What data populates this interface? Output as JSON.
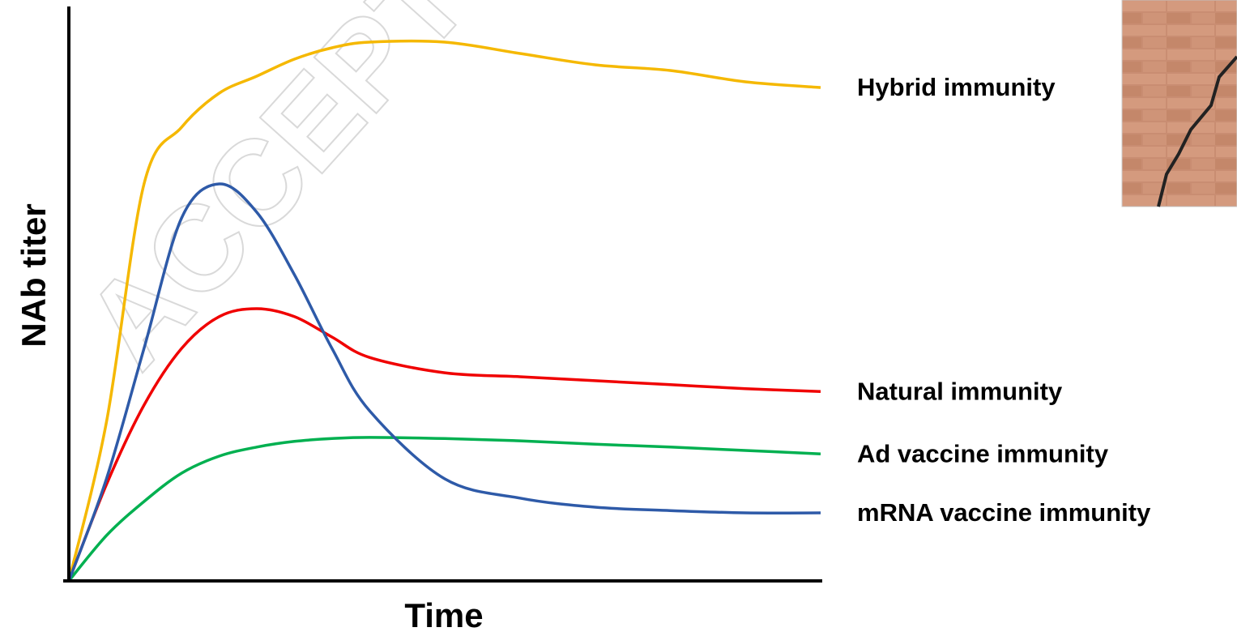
{
  "chart_data": {
    "type": "line",
    "y_label": "NAb titer",
    "x_label": "Time",
    "watermark": "ACCEPTED",
    "xlim": [
      0,
      100
    ],
    "ylim": [
      0,
      100
    ],
    "x": [
      0,
      5,
      10,
      15,
      20,
      25,
      30,
      35,
      40,
      50,
      60,
      70,
      80,
      90,
      100
    ],
    "series": [
      {
        "name": "Hybrid immunity",
        "color": "#f5b800",
        "values": [
          0,
          28,
          70,
          80,
          86,
          89,
          92,
          94,
          95,
          95,
          93,
          91,
          90,
          88,
          87
        ]
      },
      {
        "name": "Natural immunity",
        "color": "#f00000",
        "values": [
          0,
          17,
          31,
          41,
          46.6,
          48,
          46.6,
          43,
          39.4,
          36.7,
          36,
          35.3,
          34.6,
          33.9,
          33.4
        ]
      },
      {
        "name": "Ad vaccine immunity",
        "color": "#00b050",
        "values": [
          0,
          8,
          14,
          19,
          22,
          23.6,
          24.6,
          25.1,
          25.3,
          25.1,
          24.7,
          24.1,
          23.6,
          23,
          22.4
        ]
      },
      {
        "name": "mRNA vaccine immunity",
        "color": "#2e5aa8",
        "values": [
          0,
          18,
          41,
          64,
          70,
          65,
          54,
          41,
          30,
          18,
          14.6,
          13,
          12.4,
          12,
          12
        ]
      }
    ]
  }
}
